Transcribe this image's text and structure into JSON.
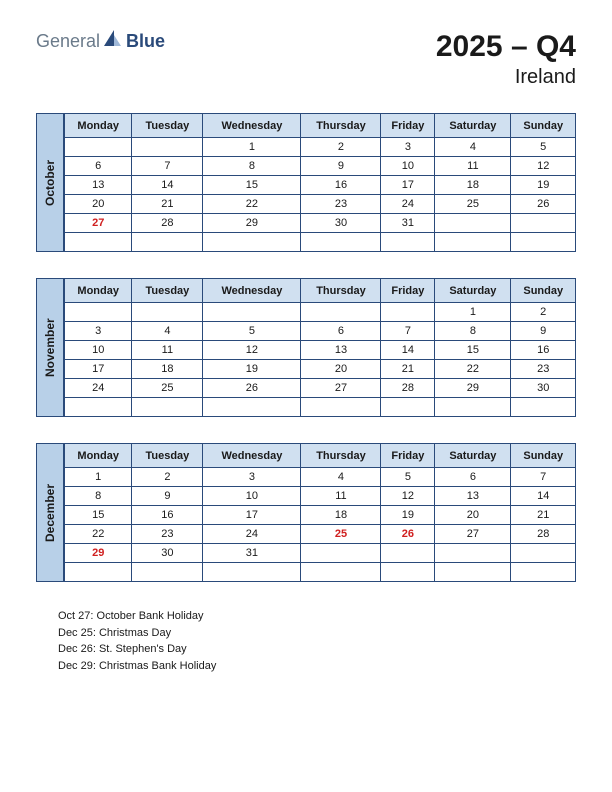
{
  "logo": {
    "part1": "General",
    "part2": "Blue"
  },
  "title": {
    "main": "2025 – Q4",
    "sub": "Ireland"
  },
  "colors": {
    "sidebar_bg": "#b8d0e8",
    "header_bg": "#d0e0f0",
    "border": "#2a4a7a",
    "holiday": "#d02020",
    "text": "#1a1a1a",
    "logo_gray": "#6a7a8a",
    "logo_blue": "#2a4a7a"
  },
  "weekdays": [
    "Monday",
    "Tuesday",
    "Wednesday",
    "Thursday",
    "Friday",
    "Saturday",
    "Sunday"
  ],
  "months": [
    {
      "name": "October",
      "weeks": [
        [
          "",
          "",
          "1",
          "2",
          "3",
          "4",
          "5"
        ],
        [
          "6",
          "7",
          "8",
          "9",
          "10",
          "11",
          "12"
        ],
        [
          "13",
          "14",
          "15",
          "16",
          "17",
          "18",
          "19"
        ],
        [
          "20",
          "21",
          "22",
          "23",
          "24",
          "25",
          "26"
        ],
        [
          "27",
          "28",
          "29",
          "30",
          "31",
          "",
          ""
        ],
        [
          "",
          "",
          "",
          "",
          "",
          "",
          ""
        ]
      ],
      "holidays": [
        [
          4,
          0
        ]
      ]
    },
    {
      "name": "November",
      "weeks": [
        [
          "",
          "",
          "",
          "",
          "",
          "1",
          "2"
        ],
        [
          "3",
          "4",
          "5",
          "6",
          "7",
          "8",
          "9"
        ],
        [
          "10",
          "11",
          "12",
          "13",
          "14",
          "15",
          "16"
        ],
        [
          "17",
          "18",
          "19",
          "20",
          "21",
          "22",
          "23"
        ],
        [
          "24",
          "25",
          "26",
          "27",
          "28",
          "29",
          "30"
        ],
        [
          "",
          "",
          "",
          "",
          "",
          "",
          ""
        ]
      ],
      "holidays": []
    },
    {
      "name": "December",
      "weeks": [
        [
          "1",
          "2",
          "3",
          "4",
          "5",
          "6",
          "7"
        ],
        [
          "8",
          "9",
          "10",
          "11",
          "12",
          "13",
          "14"
        ],
        [
          "15",
          "16",
          "17",
          "18",
          "19",
          "20",
          "21"
        ],
        [
          "22",
          "23",
          "24",
          "25",
          "26",
          "27",
          "28"
        ],
        [
          "29",
          "30",
          "31",
          "",
          "",
          "",
          ""
        ],
        [
          "",
          "",
          "",
          "",
          "",
          "",
          ""
        ]
      ],
      "holidays": [
        [
          3,
          3
        ],
        [
          3,
          4
        ],
        [
          4,
          0
        ]
      ]
    }
  ],
  "holiday_list": [
    "Oct 27: October Bank Holiday",
    "Dec 25: Christmas Day",
    "Dec 26: St. Stephen's Day",
    "Dec 29: Christmas Bank Holiday"
  ]
}
